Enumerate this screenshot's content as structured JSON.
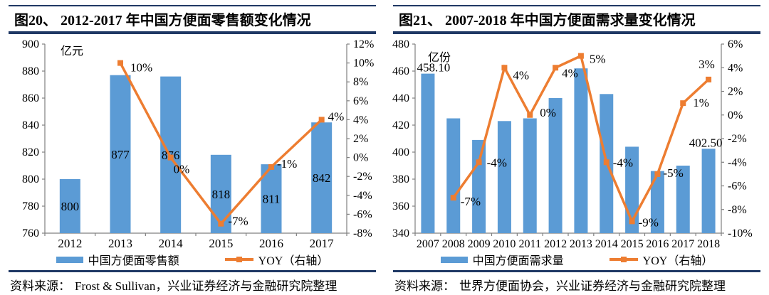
{
  "colors": {
    "bar": "#5b9bd5",
    "line": "#ed7d31",
    "rule": "#1f3864",
    "axis": "#808080"
  },
  "panels": [
    {
      "title": "图20、 2012-2017 年中国方便面零售额变化情况",
      "source_label": "资料来源：",
      "source_text": "Frost & Sullivan，兴业证券经济与金融研究院整理",
      "legend": [
        {
          "label": "中国方便面零售额",
          "type": "bar"
        },
        {
          "label": "YOY（右轴）",
          "type": "line"
        }
      ],
      "chart_data": {
        "type": "bar+line",
        "categories": [
          "2012",
          "2013",
          "2014",
          "2015",
          "2016",
          "2017"
        ],
        "left_axis": {
          "title": "亿元",
          "min": 760,
          "max": 900,
          "step": 20
        },
        "right_axis": {
          "min": -8,
          "max": 12,
          "step": 2,
          "suffix": "%"
        },
        "series": [
          {
            "name": "中国方便面零售额",
            "type": "bar",
            "axis": "left",
            "values": [
              800,
              877,
              876,
              818,
              811,
              842
            ],
            "labels": [
              "800",
              "877",
              "876",
              "818",
              "811",
              "842"
            ],
            "label_placement": "inside"
          },
          {
            "name": "YOY（右轴）",
            "type": "line",
            "axis": "right",
            "values": [
              null,
              10,
              0,
              -7,
              -1,
              4
            ],
            "point_labels": [
              null,
              {
                "t": "10%",
                "dx": 14,
                "dy": 12
              },
              {
                "t": "0%",
                "dx": 4,
                "dy": 22
              },
              {
                "t": "-7%",
                "dx": 10,
                "dy": 2
              },
              {
                "t": "-1%",
                "dx": 8,
                "dy": 1
              },
              {
                "t": "4%",
                "dx": 9,
                "dy": 1
              }
            ]
          }
        ]
      }
    },
    {
      "title": "图21、 2007-2018 年中国方便面需求量变化情况",
      "source_label": "资料来源：",
      "source_text": "世界方便面协会，兴业证券经济与金融研究院整理",
      "legend": [
        {
          "label": "中国方便面需求量",
          "type": "bar"
        },
        {
          "label": "YOY（右轴）",
          "type": "line"
        }
      ],
      "chart_data": {
        "type": "bar+line",
        "categories": [
          "2007",
          "2008",
          "2009",
          "2010",
          "2011",
          "2012",
          "2013",
          "2014",
          "2015",
          "2016",
          "2017",
          "2018"
        ],
        "left_axis": {
          "title": "亿份",
          "min": 340,
          "max": 480,
          "step": 20
        },
        "right_axis": {
          "min": -10,
          "max": 6,
          "step": 2,
          "suffix": "%"
        },
        "series": [
          {
            "name": "中国方便面需求量",
            "type": "bar",
            "axis": "left",
            "values": [
              458.1,
              425,
              409,
              423,
              425,
              440,
              462,
              443,
              404,
              386,
              390,
              402.5
            ],
            "labels": [
              {
                "t": "458.10",
                "dx": 8
              },
              null,
              null,
              null,
              null,
              null,
              null,
              null,
              null,
              null,
              null,
              {
                "t": "402.50",
                "dx": -4
              }
            ],
            "label_placement": "outside"
          },
          {
            "name": "YOY（右轴）",
            "type": "line",
            "axis": "right",
            "values": [
              null,
              -7,
              -4,
              4,
              0,
              4,
              5,
              -4,
              -9,
              -5,
              1,
              3
            ],
            "point_labels": [
              null,
              {
                "t": "-7%",
                "dx": 10,
                "dy": 11
              },
              {
                "t": "-4%",
                "dx": 11,
                "dy": 6
              },
              {
                "t": "4%",
                "dx": 12,
                "dy": 16
              },
              {
                "t": "0%",
                "dx": 14,
                "dy": 2
              },
              {
                "t": "4%",
                "dx": 9,
                "dy": 13
              },
              {
                "t": "5%",
                "dx": 12,
                "dy": 10
              },
              {
                "t": "-4%",
                "dx": 9,
                "dy": 6
              },
              {
                "t": "-9%",
                "dx": 9,
                "dy": 7
              },
              {
                "t": "-5%",
                "dx": 8,
                "dy": 4
              },
              {
                "t": "1%",
                "dx": 14,
                "dy": 5
              },
              {
                "t": "3%",
                "dx": -14,
                "dy": -16
              }
            ]
          }
        ]
      }
    }
  ]
}
